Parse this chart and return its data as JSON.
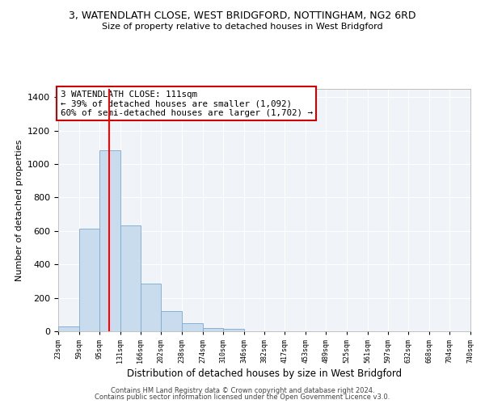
{
  "title": "3, WATENDLATH CLOSE, WEST BRIDGFORD, NOTTINGHAM, NG2 6RD",
  "subtitle": "Size of property relative to detached houses in West Bridgford",
  "xlabel": "Distribution of detached houses by size in West Bridgford",
  "ylabel": "Number of detached properties",
  "bar_color": "#c8dcee",
  "bar_edge_color": "#7aaad0",
  "vline_color": "red",
  "vline_x": 111,
  "annotation_line1": "3 WATENDLATH CLOSE: 111sqm",
  "annotation_line2": "← 39% of detached houses are smaller (1,092)",
  "annotation_line3": "60% of semi-detached houses are larger (1,702) →",
  "annotation_box_color": "white",
  "annotation_box_edge": "#cc0000",
  "tick_labels": [
    "23sqm",
    "59sqm",
    "95sqm",
    "131sqm",
    "166sqm",
    "202sqm",
    "238sqm",
    "274sqm",
    "310sqm",
    "346sqm",
    "382sqm",
    "417sqm",
    "453sqm",
    "489sqm",
    "525sqm",
    "561sqm",
    "597sqm",
    "632sqm",
    "668sqm",
    "704sqm",
    "740sqm"
  ],
  "bin_edges": [
    23,
    59,
    95,
    131,
    166,
    202,
    238,
    274,
    310,
    346,
    382,
    417,
    453,
    489,
    525,
    561,
    597,
    632,
    668,
    704,
    740
  ],
  "bar_heights": [
    30,
    615,
    1085,
    635,
    285,
    120,
    47,
    20,
    15,
    0,
    0,
    0,
    0,
    0,
    0,
    0,
    0,
    0,
    0,
    0
  ],
  "ylim": [
    0,
    1450
  ],
  "yticks": [
    0,
    200,
    400,
    600,
    800,
    1000,
    1200,
    1400
  ],
  "footer1": "Contains HM Land Registry data © Crown copyright and database right 2024.",
  "footer2": "Contains public sector information licensed under the Open Government Licence v3.0."
}
